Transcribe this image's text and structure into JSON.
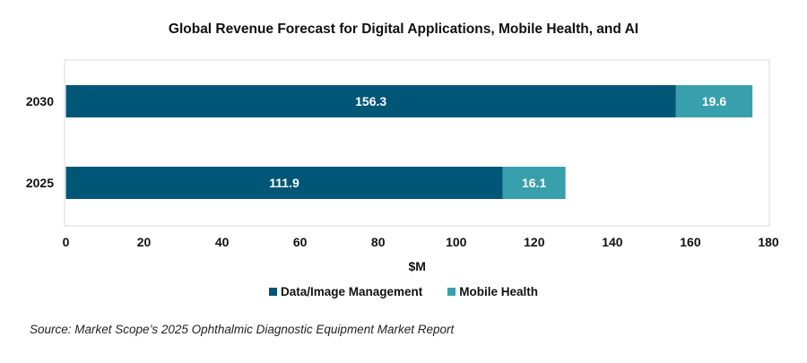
{
  "chart_data": {
    "type": "bar",
    "orientation": "horizontal",
    "stacked": true,
    "title": "Global Revenue Forecast for Digital Applications, Mobile Health, and AI",
    "xlabel": "$M",
    "ylabel": "",
    "categories": [
      "2030",
      "2025"
    ],
    "series": [
      {
        "name": "Data/Image Management",
        "values": [
          156.3,
          111.9
        ],
        "color": "#005676"
      },
      {
        "name": "Mobile Health",
        "values": [
          19.6,
          16.1
        ],
        "color": "#38A0AC"
      }
    ],
    "xlim": [
      0,
      180
    ],
    "xticks": [
      "0",
      "20",
      "40",
      "60",
      "80",
      "100",
      "120",
      "140",
      "160",
      "180"
    ],
    "grid": false,
    "legend": "bottom",
    "data_labels": [
      [
        "156.3",
        "19.6"
      ],
      [
        "111.9",
        "16.1"
      ]
    ]
  },
  "source": "Source: Market Scope’s 2025 Ophthalmic Diagnostic Equipment Market Report"
}
